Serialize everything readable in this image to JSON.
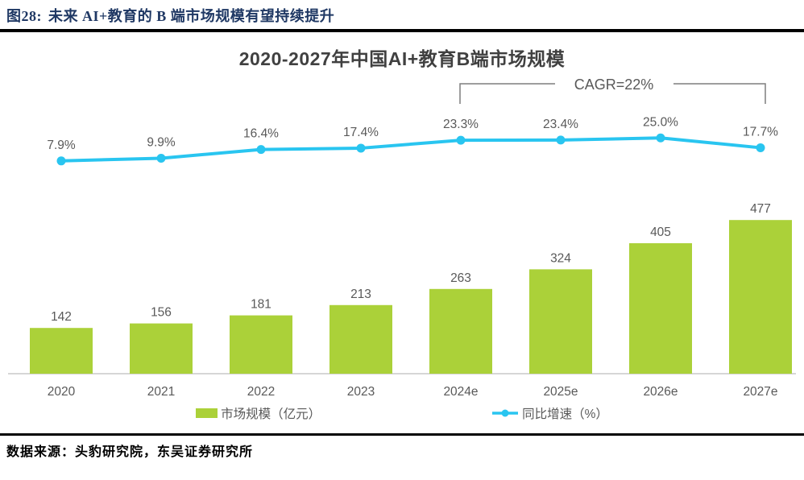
{
  "header": {
    "figure_label": "图28:",
    "title": "未来 AI+教育的 B 端市场规模有望持续提升"
  },
  "footer": {
    "source": "数据来源：头豹研究院，东吴证券研究所"
  },
  "chart_data": {
    "type": "combo",
    "title": "2020-2027年中国AI+教育B端市场规模",
    "categories": [
      "2020",
      "2021",
      "2022",
      "2023",
      "2024e",
      "2025e",
      "2026e",
      "2027e"
    ],
    "series": [
      {
        "name": "市场规模（亿元）",
        "type": "bar",
        "values": [
          142,
          156,
          181,
          213,
          263,
          324,
          405,
          477
        ],
        "color": "#ABD139"
      },
      {
        "name": "同比增速（%）",
        "type": "line",
        "values": [
          7.9,
          9.9,
          16.4,
          17.4,
          23.3,
          23.4,
          25.0,
          17.7
        ],
        "color": "#29C5F0"
      }
    ],
    "annotation": {
      "text": "CAGR=22%",
      "span": [
        "2024e",
        "2027e"
      ],
      "color": "#7F7F7F"
    },
    "legend_position": "bottom",
    "grid": false,
    "label_color": "#595959",
    "axis_line_color": "#C9C9C9",
    "ylim_bar": [
      0,
      530
    ],
    "ylim_line_pct": [
      0,
      35
    ]
  }
}
